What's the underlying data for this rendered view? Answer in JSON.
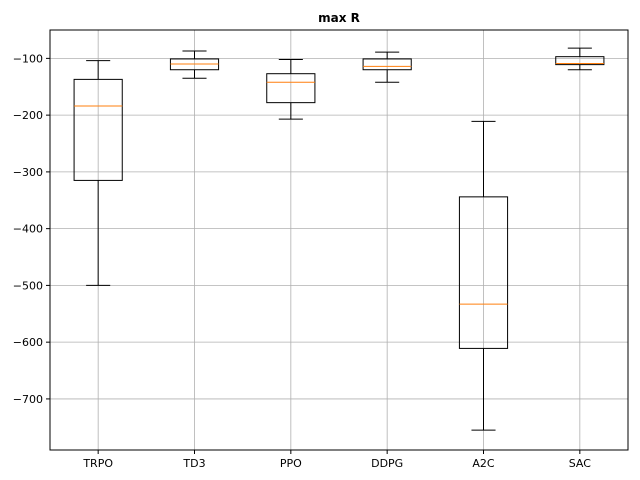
{
  "chart_data": {
    "type": "boxplot",
    "title": "max R",
    "xlabel": "",
    "ylabel": "",
    "ylim": [
      -790,
      -50
    ],
    "yticks": [
      -100,
      -200,
      -300,
      -400,
      -500,
      -600,
      -700
    ],
    "ytick_labels": [
      "−100",
      "−200",
      "−300",
      "−400",
      "−500",
      "−600",
      "−700"
    ],
    "grid": true,
    "categories": [
      "TRPO",
      "TD3",
      "PPO",
      "DDPG",
      "A2C",
      "SAC"
    ],
    "boxes": [
      {
        "whisker_low": -500,
        "q1": -315,
        "median": -184,
        "q3": -137,
        "whisker_high": -104
      },
      {
        "whisker_low": -135,
        "q1": -120,
        "median": -110,
        "q3": -101,
        "whisker_high": -87
      },
      {
        "whisker_low": -207,
        "q1": -178,
        "median": -142,
        "q3": -127,
        "whisker_high": -102
      },
      {
        "whisker_low": -142,
        "q1": -120,
        "median": -114,
        "q3": -101,
        "whisker_high": -89
      },
      {
        "whisker_low": -755,
        "q1": -611,
        "median": -533,
        "q3": -344,
        "whisker_high": -211
      },
      {
        "whisker_low": -120,
        "q1": -111,
        "median": -109,
        "q3": -97,
        "whisker_high": -82
      }
    ],
    "colors": {
      "box": "#000000",
      "median": "#ff7f0e",
      "grid": "#b0b0b0"
    }
  }
}
